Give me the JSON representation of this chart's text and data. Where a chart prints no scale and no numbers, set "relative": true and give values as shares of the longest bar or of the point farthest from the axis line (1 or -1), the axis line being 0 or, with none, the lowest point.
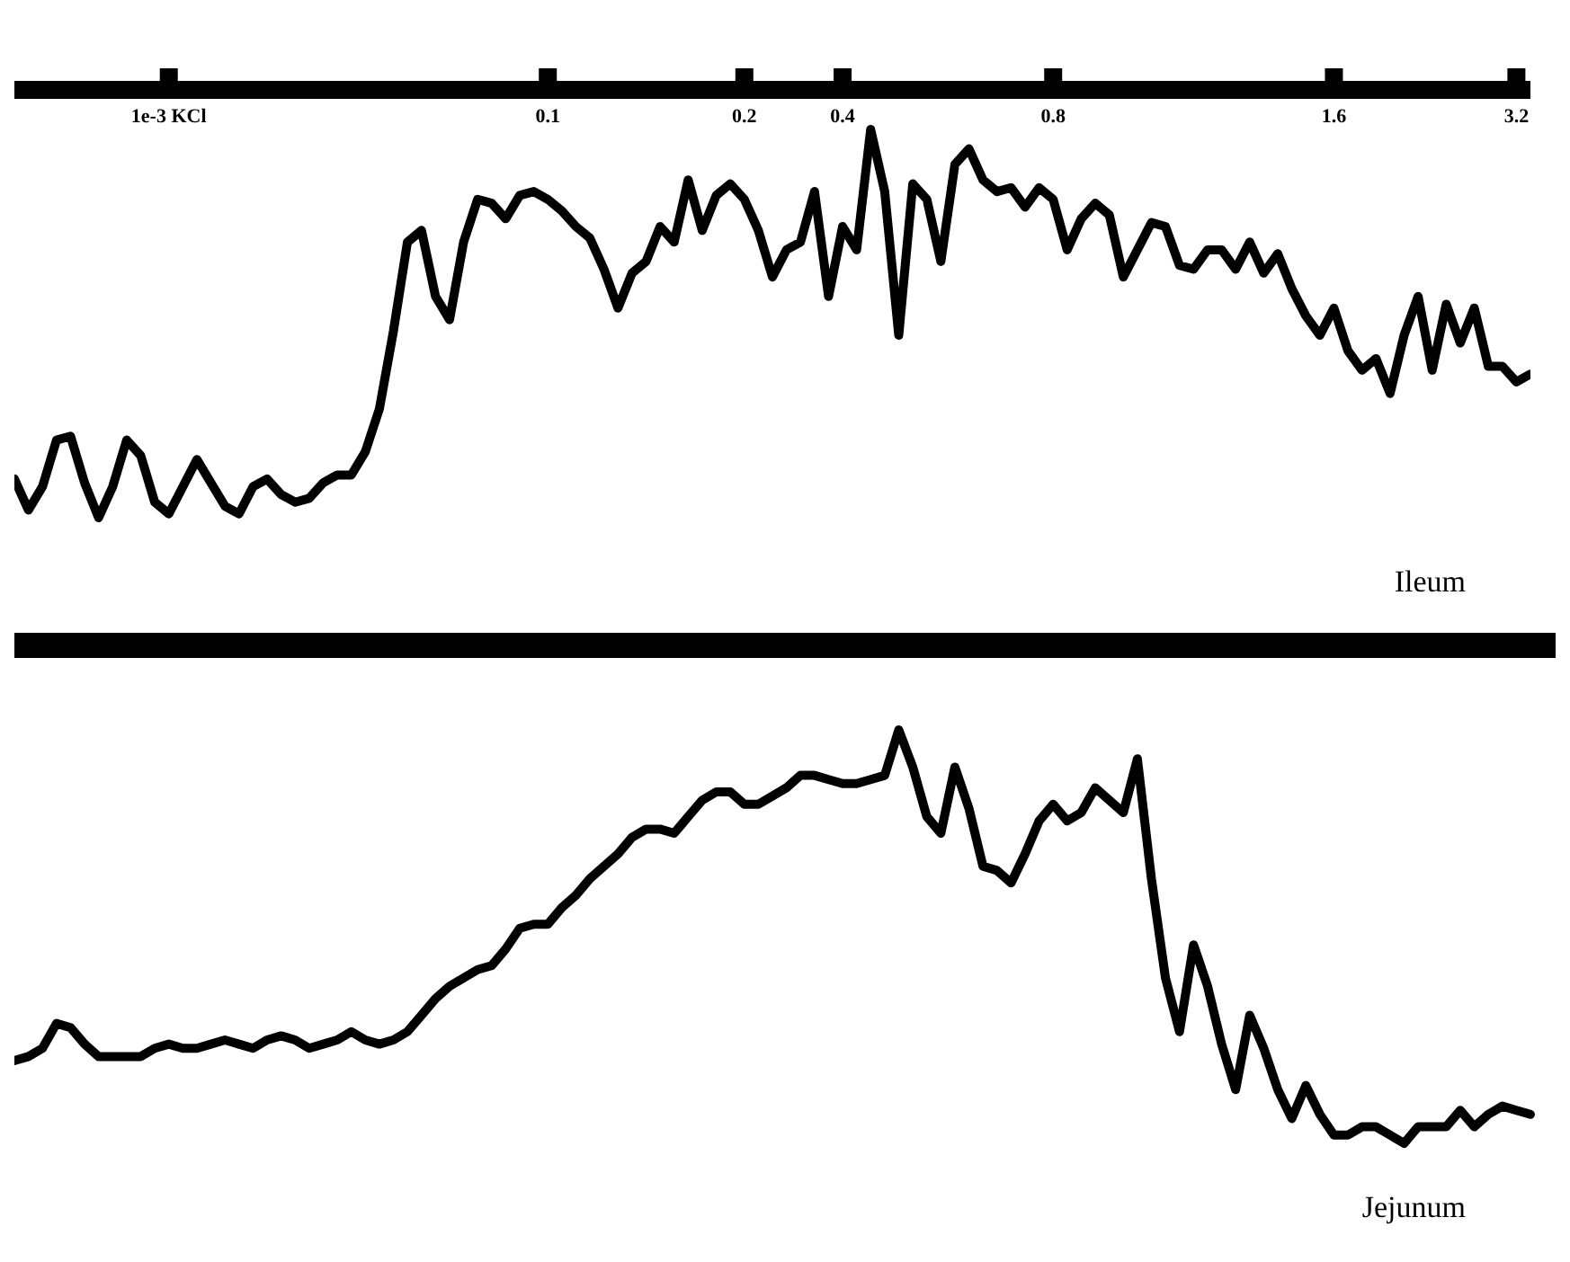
{
  "chart_data": [
    {
      "type": "line",
      "relative": true,
      "tick_labels": "x",
      "color": "#000000",
      "annotations": [
        "Ileum"
      ],
      "categories": [
        null,
        null,
        null,
        null,
        null,
        null,
        null,
        null,
        null,
        null,
        null,
        "1e-3 KCl",
        null,
        null,
        null,
        null,
        null,
        null,
        null,
        null,
        null,
        null,
        null,
        null,
        null,
        null,
        null,
        null,
        null,
        null,
        null,
        null,
        null,
        null,
        null,
        null,
        null,
        null,
        "0.1",
        null,
        null,
        null,
        null,
        null,
        null,
        null,
        null,
        null,
        null,
        null,
        null,
        null,
        "0.2",
        null,
        null,
        null,
        null,
        null,
        null,
        "0.4",
        null,
        null,
        null,
        null,
        null,
        null,
        null,
        null,
        null,
        null,
        null,
        null,
        null,
        null,
        "0.8",
        null,
        null,
        null,
        null,
        null,
        null,
        null,
        null,
        null,
        null,
        null,
        null,
        null,
        null,
        null,
        null,
        null,
        null,
        null,
        "1.6",
        null,
        null,
        null,
        null,
        null,
        null,
        null,
        null,
        null,
        null,
        null,
        null,
        "3.2",
        null
      ],
      "values": [
        0.1,
        0.02,
        0.08,
        0.2,
        0.21,
        0.09,
        0,
        0.08,
        0.2,
        0.16,
        0.04,
        0.01,
        0.08,
        0.15,
        0.09,
        0.03,
        0.01,
        0.08,
        0.1,
        0.06,
        0.04,
        0.05,
        0.09,
        0.11,
        0.11,
        0.17,
        0.28,
        0.48,
        0.71,
        0.74,
        0.57,
        0.51,
        0.71,
        0.82,
        0.81,
        0.77,
        0.83,
        0.84,
        0.82,
        0.79,
        0.75,
        0.72,
        0.64,
        0.54,
        0.63,
        0.66,
        0.75,
        0.71,
        0.87,
        0.74,
        0.83,
        0.86,
        0.82,
        0.74,
        0.62,
        0.69,
        0.71,
        0.84,
        0.57,
        0.75,
        0.69,
        1,
        0.84,
        0.47,
        0.86,
        0.82,
        0.66,
        0.91,
        0.95,
        0.87,
        0.84,
        0.85,
        0.8,
        0.85,
        0.82,
        0.69,
        0.77,
        0.81,
        0.78,
        0.62,
        0.69,
        0.76,
        0.75,
        0.65,
        0.64,
        0.69,
        0.69,
        0.64,
        0.71,
        0.63,
        0.68,
        0.59,
        0.52,
        0.47,
        0.54,
        0.43,
        0.38,
        0.41,
        0.32,
        0.47,
        0.57,
        0.38,
        0.55,
        0.45,
        0.54,
        0.39,
        0.39,
        0.35,
        0.37
      ]
    },
    {
      "type": "line",
      "relative": true,
      "tick_labels": false,
      "color": "#000000",
      "annotations": [
        "Jejunum"
      ],
      "categories": [
        null,
        null,
        null,
        null,
        null,
        null,
        null,
        null,
        null,
        null,
        null,
        null,
        null,
        null,
        null,
        null,
        null,
        null,
        null,
        null,
        null,
        null,
        null,
        null,
        null,
        null,
        null,
        null,
        null,
        null,
        null,
        null,
        null,
        null,
        null,
        null,
        null,
        null,
        null,
        null,
        null,
        null,
        null,
        null,
        null,
        null,
        null,
        null,
        null,
        null,
        null,
        null,
        null,
        null,
        null,
        null,
        null,
        null,
        null,
        null,
        null,
        null,
        null,
        null,
        null,
        null,
        null,
        null,
        null,
        null,
        null,
        null,
        null,
        null,
        null,
        null,
        null,
        null,
        null,
        null,
        null,
        null,
        null,
        null,
        null,
        null,
        null,
        null,
        null,
        null,
        null,
        null,
        null,
        null,
        null,
        null,
        null,
        null,
        null,
        null,
        null,
        null,
        null,
        null,
        null,
        null,
        null,
        null,
        null
      ],
      "values": [
        0.2,
        0.21,
        0.23,
        0.29,
        0.28,
        0.24,
        0.21,
        0.21,
        0.21,
        0.21,
        0.23,
        0.24,
        0.23,
        0.23,
        0.24,
        0.25,
        0.24,
        0.23,
        0.25,
        0.26,
        0.25,
        0.23,
        0.24,
        0.25,
        0.27,
        0.25,
        0.24,
        0.25,
        0.27,
        0.31,
        0.35,
        0.38,
        0.4,
        0.42,
        0.43,
        0.47,
        0.52,
        0.53,
        0.53,
        0.57,
        0.6,
        0.64,
        0.67,
        0.7,
        0.74,
        0.76,
        0.76,
        0.75,
        0.79,
        0.83,
        0.85,
        0.85,
        0.82,
        0.82,
        0.84,
        0.86,
        0.89,
        0.89,
        0.88,
        0.87,
        0.87,
        0.88,
        0.89,
        1,
        0.91,
        0.79,
        0.75,
        0.91,
        0.81,
        0.67,
        0.66,
        0.63,
        0.7,
        0.78,
        0.82,
        0.78,
        0.8,
        0.86,
        0.83,
        0.8,
        0.93,
        0.64,
        0.4,
        0.27,
        0.48,
        0.38,
        0.24,
        0.13,
        0.31,
        0.23,
        0.13,
        0.06,
        0.14,
        0.07,
        0.02,
        0.02,
        0.04,
        0.04,
        0.02,
        0,
        0.04,
        0.04,
        0.04,
        0.08,
        0.04,
        0.07,
        0.09,
        0.08,
        0.07
      ]
    }
  ]
}
